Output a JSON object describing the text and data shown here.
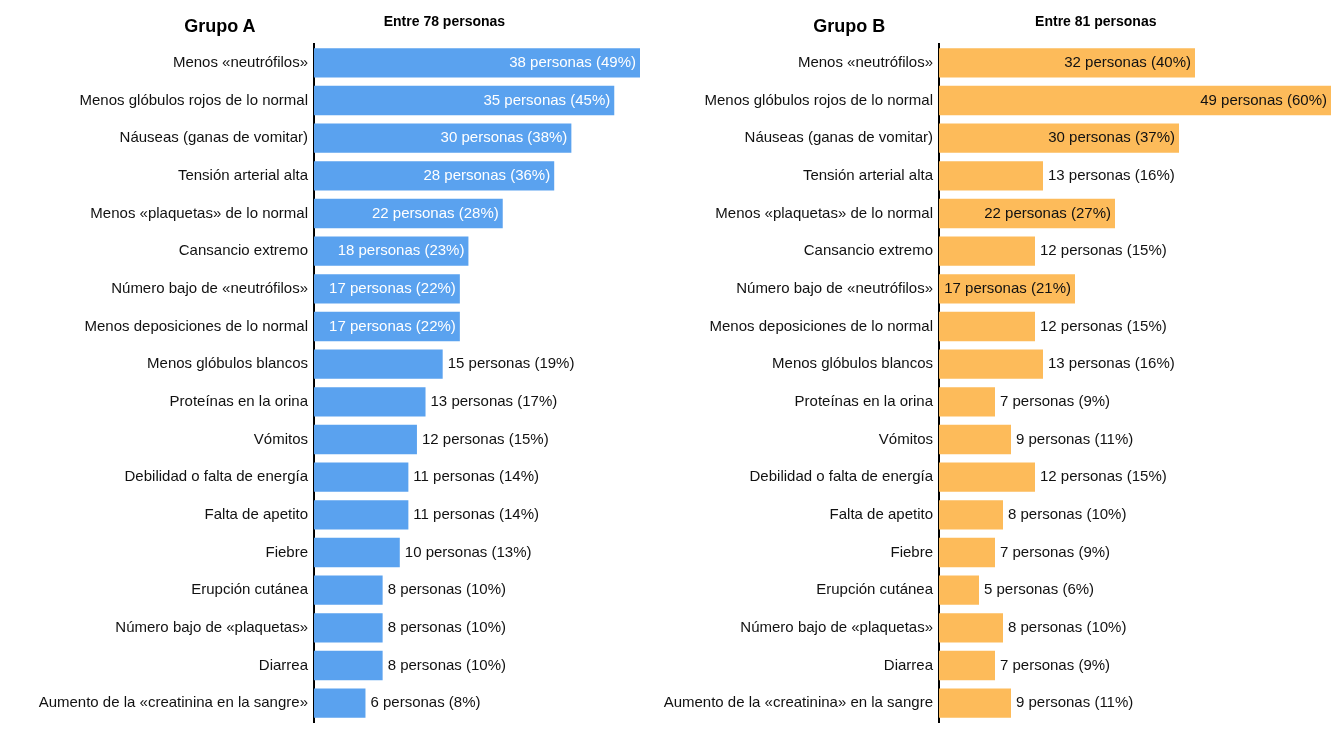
{
  "chart_data": [
    {
      "type": "bar",
      "orientation": "horizontal",
      "title": "Grupo A",
      "subtitle": "Entre 78 personas",
      "tick_labels": "y",
      "color": "#5aa2ef",
      "categories": [
        "Menos «neutrófilos»",
        "Menos glóbulos rojos de lo normal",
        "Náuseas (ganas de vomitar)",
        "Tensión arterial alta",
        "Menos «plaquetas» de lo normal",
        "Cansancio extremo",
        "Número bajo de «neutrófilos»",
        "Menos deposiciones de lo normal",
        "Menos glóbulos blancos",
        "Proteínas en la orina",
        "Vómitos",
        "Debilidad o falta de energía",
        "Falta de apetito",
        "Fiebre",
        "Erupción cutánea",
        "Número bajo de «plaquetas»",
        "Diarrea",
        "Aumento de la «creatinina en la sangre»"
      ],
      "values": [
        38,
        35,
        30,
        28,
        22,
        18,
        17,
        17,
        15,
        13,
        12,
        11,
        11,
        10,
        8,
        8,
        8,
        6
      ],
      "value_labels": [
        "38 personas (49%)",
        "35 personas (45%)",
        "30 personas (38%)",
        "28 personas (36%)",
        "22 personas (28%)",
        "18 personas (23%)",
        "17 personas (22%)",
        "17 personas (22%)",
        "15 personas (19%)",
        "13 personas (17%)",
        "12 personas (15%)",
        "11 personas (14%)",
        "11 personas (14%)",
        "10 personas (13%)",
        "8 personas (10%)",
        "8 personas (10%)",
        "8 personas (10%)",
        "6 personas (8%)"
      ]
    },
    {
      "type": "bar",
      "orientation": "horizontal",
      "title": "Grupo B",
      "subtitle": "Entre 81 personas",
      "tick_labels": "y",
      "color": "#fdbb5a",
      "categories": [
        "Menos «neutrófilos»",
        "Menos glóbulos rojos de lo normal",
        "Náuseas (ganas de vomitar)",
        "Tensión arterial alta",
        "Menos «plaquetas» de lo normal",
        "Cansancio extremo",
        "Número bajo de «neutrófilos»",
        "Menos deposiciones de lo normal",
        "Menos glóbulos blancos",
        "Proteínas en la orina",
        "Vómitos",
        "Debilidad o falta de energía",
        "Falta de apetito",
        "Fiebre",
        "Erupción cutánea",
        "Número bajo de «plaquetas»",
        "Diarrea",
        "Aumento de la «creatinina» en la sangre"
      ],
      "values": [
        32,
        49,
        30,
        13,
        22,
        12,
        17,
        12,
        13,
        7,
        9,
        12,
        8,
        7,
        5,
        8,
        7,
        9
      ],
      "value_labels": [
        "32 personas (40%)",
        "49 personas (60%)",
        "30 personas (37%)",
        "13 personas (16%)",
        "22 personas (27%)",
        "12 personas (15%)",
        "17 personas (21%)",
        "12 personas (15%)",
        "13 personas (16%)",
        "7 personas (9%)",
        "9 personas (11%)",
        "12 personas (15%)",
        "8 personas (10%)",
        "7 personas (9%)",
        "5 personas (6%)",
        "8 personas (10%)",
        "7 personas (9%)",
        "9 personas (11%)"
      ]
    }
  ]
}
